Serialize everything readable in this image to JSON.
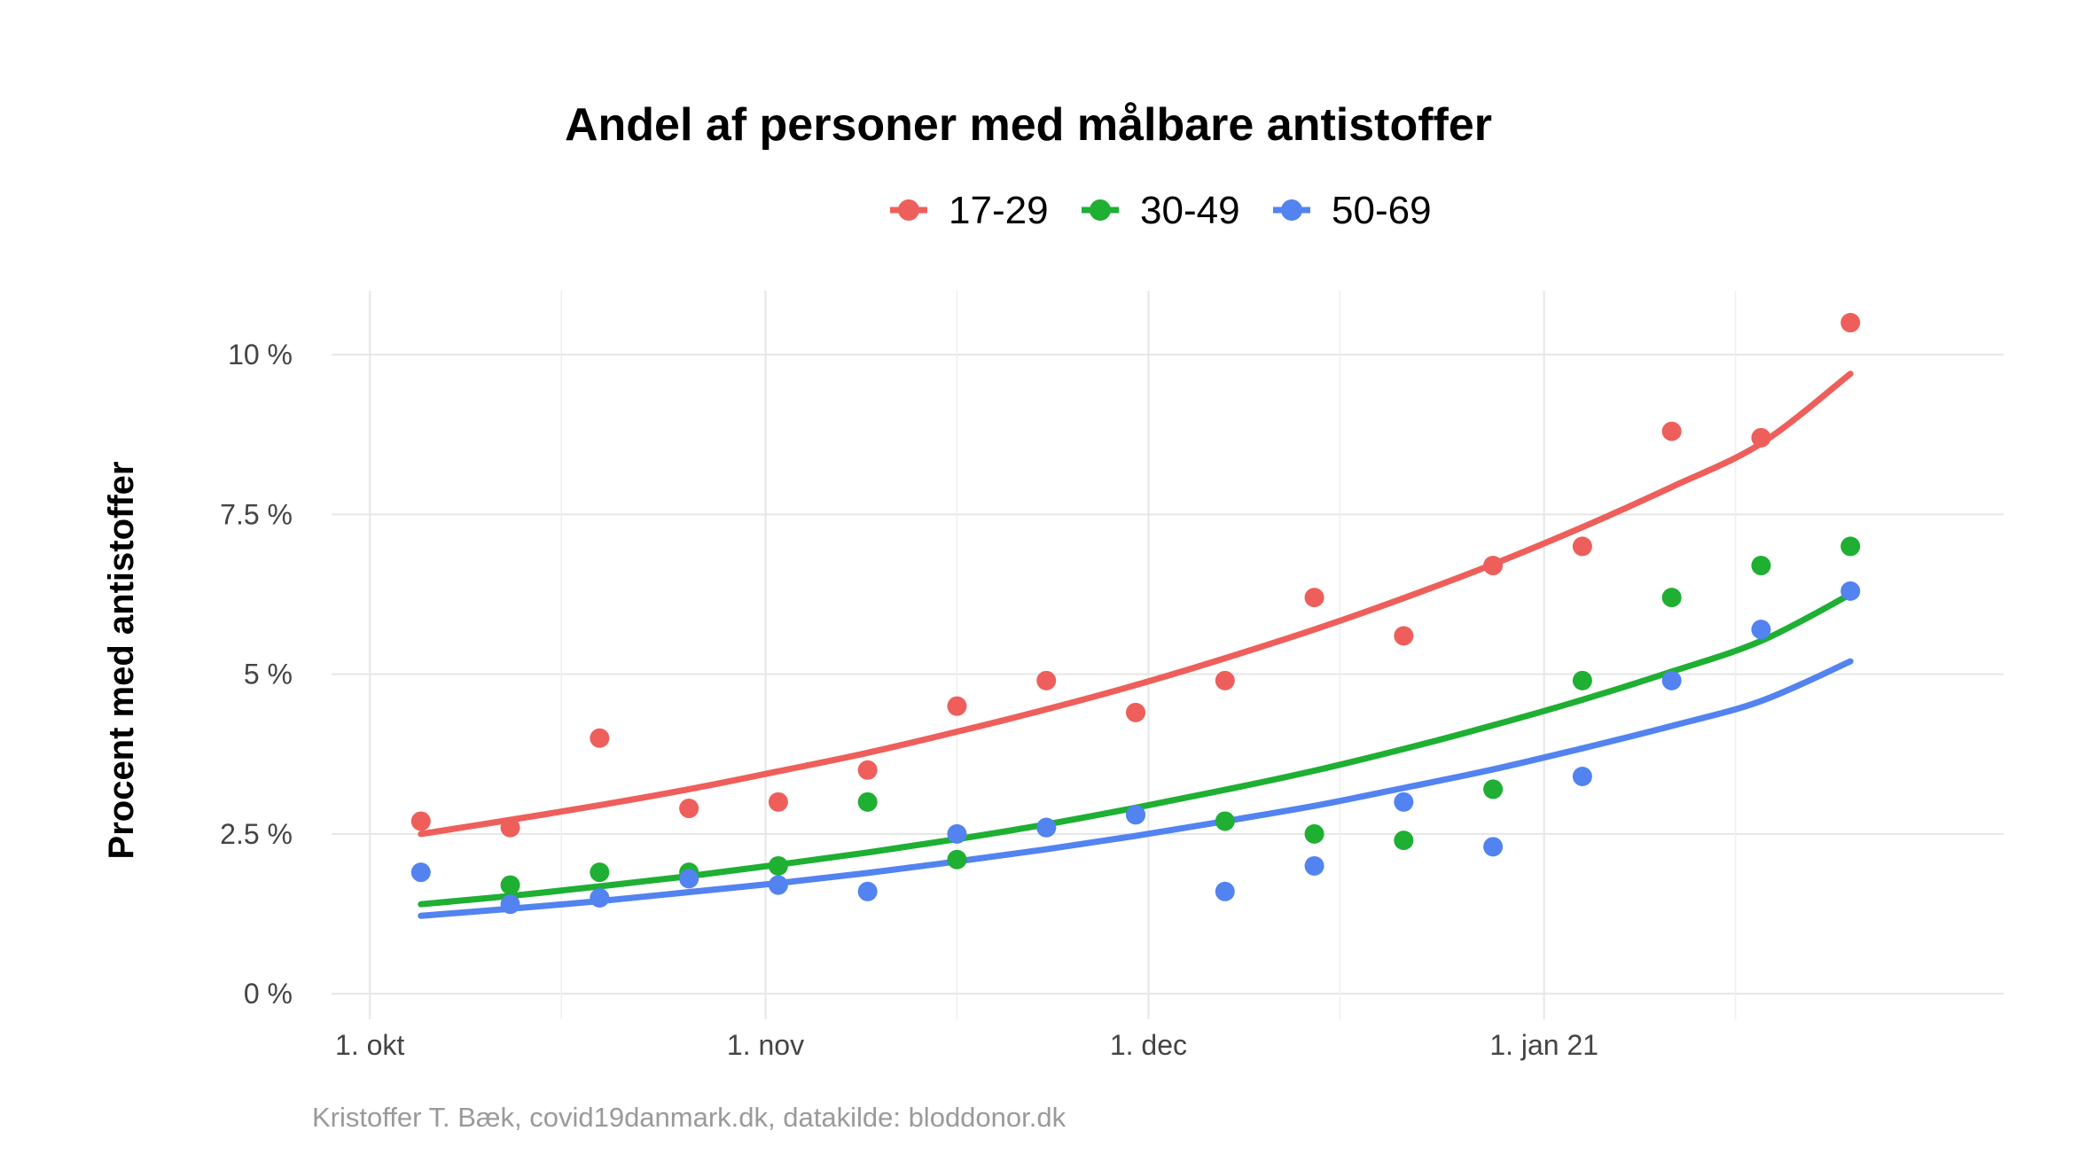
{
  "chart_data": {
    "type": "scatter",
    "title": "Andel af personer med målbare antistoffer",
    "ylabel": "Procent med antistoffer",
    "xlabel": "",
    "caption": "Kristoffer T. Bæk, covid19danmark.dk, datakilde: bloddonor.dk",
    "legend_position": "top",
    "grid": true,
    "x_axis": {
      "type": "date",
      "range": [
        "2020-09-28",
        "2021-02-06"
      ],
      "major_ticks": [
        {
          "date": "2020-10-01",
          "label": "1. okt"
        },
        {
          "date": "2020-11-01",
          "label": "1. nov"
        },
        {
          "date": "2020-12-01",
          "label": "1. dec"
        },
        {
          "date": "2021-01-01",
          "label": "1. jan 21"
        }
      ],
      "minor_ticks": [
        "2020-10-16",
        "2020-11-16",
        "2020-12-16",
        "2021-01-16"
      ]
    },
    "y_axis": {
      "range": [
        -0.4,
        11
      ],
      "ticks": [
        {
          "value": 0,
          "label": "0 %"
        },
        {
          "value": 2.5,
          "label": "2.5 %"
        },
        {
          "value": 5,
          "label": "5 %"
        },
        {
          "value": 7.5,
          "label": "7.5 %"
        },
        {
          "value": 10,
          "label": "10 %"
        }
      ]
    },
    "x": [
      "2020-10-05",
      "2020-10-12",
      "2020-10-19",
      "2020-10-26",
      "2020-11-02",
      "2020-11-09",
      "2020-11-16",
      "2020-11-23",
      "2020-11-30",
      "2020-12-07",
      "2020-12-14",
      "2020-12-21",
      "2020-12-28",
      "2021-01-04",
      "2021-01-11",
      "2021-01-18",
      "2021-01-25"
    ],
    "series": [
      {
        "name": "17-29",
        "color": "#ee5f5b",
        "values": [
          2.7,
          2.6,
          4.0,
          2.9,
          3.0,
          3.5,
          4.5,
          4.9,
          4.4,
          4.9,
          6.2,
          5.6,
          6.7,
          7.0,
          8.8,
          8.7,
          10.5
        ],
        "trend": [
          2.5,
          2.72,
          2.95,
          3.2,
          3.48,
          3.77,
          4.1,
          4.45,
          4.83,
          5.25,
          5.7,
          6.19,
          6.72,
          7.3,
          7.93,
          8.61,
          9.7
        ]
      },
      {
        "name": "30-49",
        "color": "#1eaf33",
        "values": [
          null,
          1.7,
          1.9,
          1.9,
          2.0,
          3.0,
          2.1,
          2.6,
          2.8,
          2.7,
          2.5,
          2.4,
          3.2,
          4.9,
          6.2,
          6.7,
          7.0
        ],
        "trend": [
          1.4,
          1.53,
          1.68,
          1.84,
          2.02,
          2.21,
          2.42,
          2.65,
          2.91,
          3.19,
          3.49,
          3.83,
          4.2,
          4.6,
          5.04,
          5.52,
          6.25
        ]
      },
      {
        "name": "50-69",
        "color": "#5283f0",
        "values": [
          1.9,
          1.4,
          1.5,
          1.8,
          1.7,
          1.6,
          2.5,
          2.6,
          2.8,
          1.6,
          2.0,
          3.0,
          2.3,
          3.4,
          4.9,
          5.7,
          6.3
        ],
        "trend": [
          1.22,
          1.33,
          1.45,
          1.59,
          1.73,
          1.89,
          2.07,
          2.26,
          2.47,
          2.7,
          2.94,
          3.22,
          3.51,
          3.84,
          4.19,
          4.58,
          5.2
        ]
      }
    ]
  }
}
